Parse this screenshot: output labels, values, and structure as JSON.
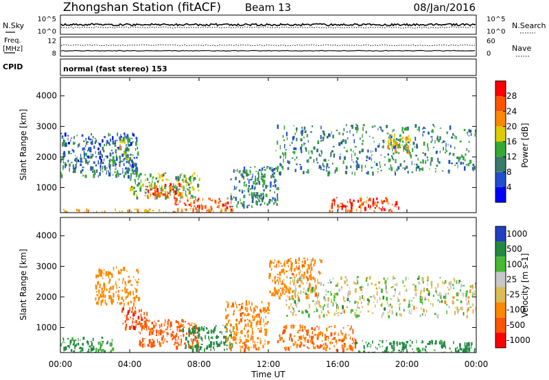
{
  "header": {
    "station": "Zhongshan Station (fitACF)",
    "beam": "Beam 13",
    "date": "08/Jan/2016"
  },
  "top_strip": {
    "nsky_label": "N.Sky",
    "nsky_ticks": [
      "10^5",
      "10^0"
    ],
    "nsearch_label": "N.Search",
    "nsearch_ticks": [
      "10^5",
      "10^0"
    ],
    "freq_label_1": "Freq.",
    "freq_label_2": "[MHz]",
    "freq_ticks": [
      "12",
      "8"
    ],
    "nave_label": "Nave",
    "nave_ticks": [
      "60",
      "0"
    ],
    "cpid_label": "CPID",
    "cpid_text": "normal (fast stereo) 153"
  },
  "axes": {
    "xlabel": "Time UT",
    "x_ticks": [
      "00:00",
      "04:00",
      "08:00",
      "12:00",
      "16:00",
      "20:00",
      "00:00"
    ],
    "ylabel": "Slant Range [km]",
    "y_ticks": [
      "4000",
      "3000",
      "2000",
      "1000"
    ]
  },
  "power_scale": {
    "label": "Power [dB]",
    "ticks": [
      "28",
      "24",
      "20",
      "16",
      "12",
      "8",
      "4"
    ],
    "colors": [
      "#0000ff",
      "#2050d0",
      "#3a7a6a",
      "#33aa33",
      "#ddcc00",
      "#ff8800",
      "#ff5500",
      "#ff0000"
    ]
  },
  "velocity_scale": {
    "label": "Velocity [m s-1]",
    "ticks": [
      "1000",
      "500",
      "100",
      "25",
      "-25",
      "-100",
      "-500",
      "-1000"
    ],
    "colors": [
      "#2040c0",
      "#228a40",
      "#44bb33",
      "#c8c8c8",
      "#ddbb55",
      "#ff8800",
      "#ff5500",
      "#ff0000"
    ]
  },
  "chart_data": [
    {
      "type": "heatmap",
      "title": "Power",
      "xlabel": "Time UT",
      "ylabel": "Slant Range [km]",
      "xlim": [
        0,
        24
      ],
      "ylim": [
        180,
        4600
      ],
      "colorbar": {
        "label": "Power [dB]",
        "range": [
          0,
          30
        ]
      },
      "regions": [
        {
          "t": [
            0.0,
            4.5
          ],
          "r": [
            1400,
            2800
          ],
          "value": 8
        },
        {
          "t": [
            3.3,
            4.0
          ],
          "r": [
            1900,
            2700
          ],
          "value": 14
        },
        {
          "t": [
            4.0,
            8.0
          ],
          "r": [
            700,
            1500
          ],
          "value": 14
        },
        {
          "t": [
            4.8,
            7.0
          ],
          "r": [
            700,
            1150
          ],
          "value": 26
        },
        {
          "t": [
            6.5,
            10.0
          ],
          "r": [
            300,
            700
          ],
          "value": 24
        },
        {
          "t": [
            9.8,
            12.5
          ],
          "r": [
            400,
            1700
          ],
          "value": 10
        },
        {
          "t": [
            12.3,
            24.0
          ],
          "r": [
            1500,
            3100
          ],
          "value": 10
        },
        {
          "t": [
            18.8,
            20.2
          ],
          "r": [
            2100,
            2800
          ],
          "value": 18
        },
        {
          "t": [
            15.5,
            19.5
          ],
          "r": [
            250,
            700
          ],
          "value": 26
        },
        {
          "t": [
            0.0,
            10.0
          ],
          "r": [
            180,
            320
          ],
          "value": 20
        }
      ]
    },
    {
      "type": "heatmap",
      "title": "Velocity",
      "xlabel": "Time UT",
      "ylabel": "Slant Range [km]",
      "xlim": [
        0,
        24
      ],
      "ylim": [
        180,
        4600
      ],
      "colorbar": {
        "label": "Velocity [m s-1]",
        "range": [
          -1000,
          1000
        ]
      },
      "regions": [
        {
          "t": [
            2.0,
            4.5
          ],
          "r": [
            1800,
            3000
          ],
          "value": -300
        },
        {
          "t": [
            3.5,
            5.0
          ],
          "r": [
            1000,
            1700
          ],
          "value": -900
        },
        {
          "t": [
            4.5,
            8.0
          ],
          "r": [
            400,
            1300
          ],
          "value": -600
        },
        {
          "t": [
            7.0,
            10.0
          ],
          "r": [
            300,
            1100
          ],
          "value": 300
        },
        {
          "t": [
            9.5,
            12.0
          ],
          "r": [
            300,
            1900
          ],
          "value": -400
        },
        {
          "t": [
            12.0,
            15.0
          ],
          "r": [
            2000,
            3300
          ],
          "value": -400
        },
        {
          "t": [
            13.0,
            24.0
          ],
          "r": [
            1400,
            2700
          ],
          "value": 0
        },
        {
          "t": [
            12.5,
            17.0
          ],
          "r": [
            300,
            1100
          ],
          "value": -500
        },
        {
          "t": [
            17.0,
            24.0
          ],
          "r": [
            200,
            600
          ],
          "value": 200
        },
        {
          "t": [
            0.0,
            3.0
          ],
          "r": [
            180,
            700
          ],
          "value": 150
        }
      ]
    }
  ]
}
